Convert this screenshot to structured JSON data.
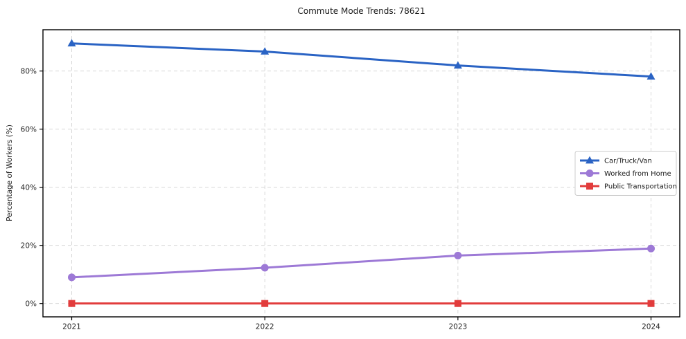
{
  "chart_data": {
    "type": "line",
    "title": "Commute Mode Trends: 78621",
    "xlabel": "",
    "ylabel": "Percentage of Workers (%)",
    "categories": [
      "2021",
      "2022",
      "2023",
      "2024"
    ],
    "series": [
      {
        "name": "Car/Truck/Van",
        "color": "#2a63c4",
        "marker": "triangle",
        "values": [
          89.5,
          86.7,
          81.9,
          78.1
        ]
      },
      {
        "name": "Worked from Home",
        "color": "#9d79d6",
        "marker": "circle",
        "values": [
          9.0,
          12.3,
          16.5,
          18.9
        ]
      },
      {
        "name": "Public Transportation",
        "color": "#e23c3c",
        "marker": "square",
        "values": [
          0.0,
          0.0,
          0.0,
          0.0
        ]
      }
    ],
    "yticks": [
      0,
      20,
      40,
      60,
      80
    ],
    "ytick_labels": [
      "0%",
      "20%",
      "40%",
      "60%",
      "80%"
    ],
    "ylim": [
      -4.6,
      94.2
    ],
    "grid": true,
    "grid_style": "dashed",
    "legend_position": "center right",
    "colors": {
      "grid": "#d8d8d8",
      "axis": "#000000",
      "tick_text": "#262626",
      "legend_border": "#cccccc",
      "plot_background": "#ffffff"
    }
  }
}
